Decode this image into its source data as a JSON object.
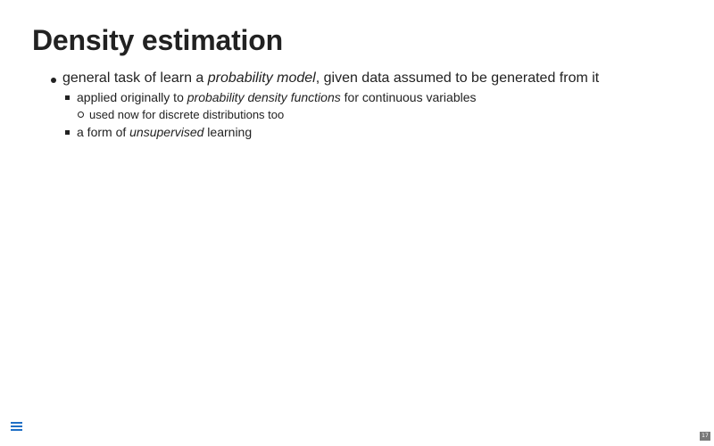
{
  "slide": {
    "title": "Density estimation",
    "bullets": [
      {
        "prefix": "general task of learn a ",
        "emphasis": "probability model",
        "suffix": ", given data assumed to be generated from it"
      },
      {
        "prefix": "applied originally to ",
        "emphasis": "probability density functions",
        "suffix": " for continuous variables"
      },
      {
        "text": "used now for discrete distributions too"
      },
      {
        "prefix": "a form of ",
        "emphasis": "unsupervised",
        "suffix": " learning"
      }
    ]
  },
  "controls": {
    "menu_icon": "hamburger-menu-icon",
    "slide_number": "17"
  },
  "colors": {
    "text": "#222222",
    "menu_accent": "#1f6fc5",
    "slide_number_bg": "#7a7a7a"
  }
}
